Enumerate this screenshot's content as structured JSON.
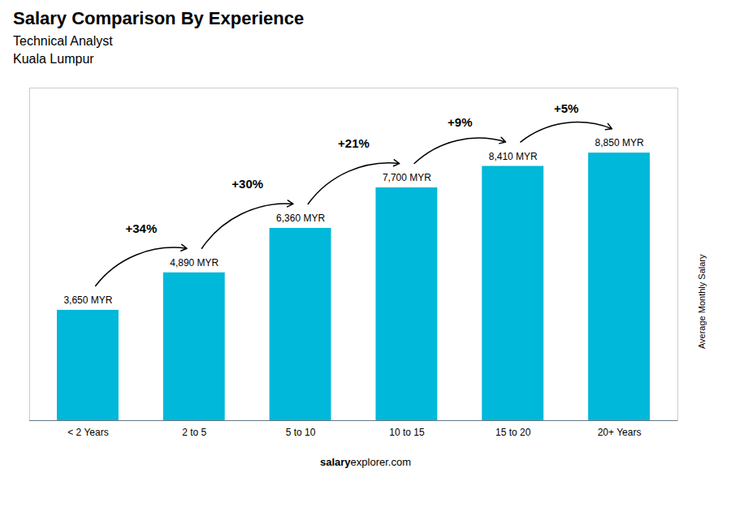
{
  "chart_data": {
    "type": "bar",
    "title": "Salary Comparison By Experience",
    "subtitle": "Technical Analyst",
    "city": "Kuala Lumpur",
    "categories": [
      "< 2 Years",
      "2 to 5",
      "5 to 10",
      "10 to 15",
      "15 to 20",
      "20+ Years"
    ],
    "values": [
      3650,
      4890,
      6360,
      7700,
      8410,
      8850
    ],
    "value_labels": [
      "3,650 MYR",
      "4,890 MYR",
      "6,360 MYR",
      "7,700 MYR",
      "8,410 MYR",
      "8,850 MYR"
    ],
    "data_labels": true,
    "color": "#00b8d9",
    "ylabel": "Average Monthly Salary",
    "ylim": [
      0,
      11000
    ],
    "tick_labels": "x",
    "annotations": [
      "+34%",
      "+30%",
      "+21%",
      "+9%",
      "+5%"
    ],
    "footer": [
      "salary",
      "explorer.com"
    ]
  }
}
